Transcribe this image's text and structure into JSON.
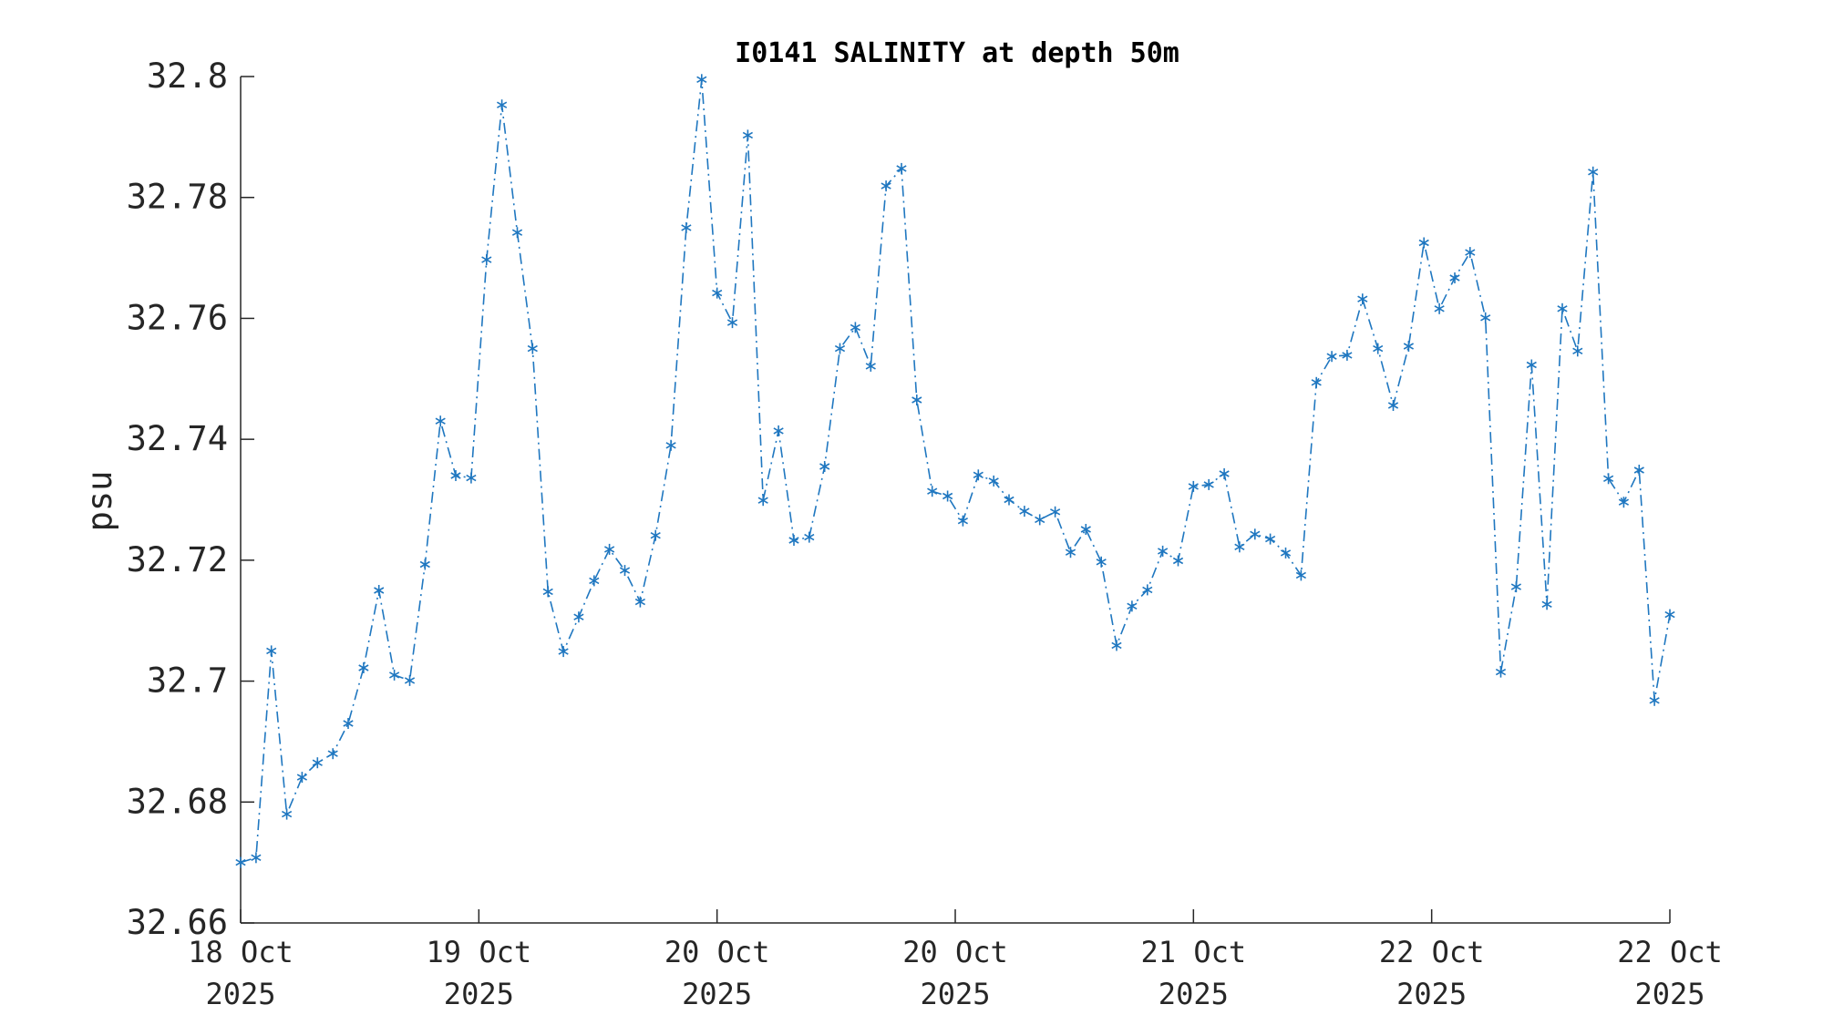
{
  "chart_data": {
    "type": "line",
    "title": "I0141 SALINITY at depth 50m",
    "ylabel": "psu",
    "xlabel": "",
    "ylim": [
      32.66,
      32.8
    ],
    "yticks": [
      "32.66",
      "32.68",
      "32.7",
      "32.72",
      "32.74",
      "32.76",
      "32.78",
      "32.8"
    ],
    "xticks": [
      {
        "day": "18 Oct",
        "year": "2025"
      },
      {
        "day": "19 Oct",
        "year": "2025"
      },
      {
        "day": "20 Oct",
        "year": "2025"
      },
      {
        "day": "20 Oct",
        "year": "2025"
      },
      {
        "day": "21 Oct",
        "year": "2025"
      },
      {
        "day": "22 Oct",
        "year": "2025"
      },
      {
        "day": "22 Oct",
        "year": "2025"
      }
    ],
    "grid": false,
    "line_style": "dash-dot",
    "marker": "asterisk",
    "color": "#1f77c0",
    "series": [
      {
        "values": [
          32.67,
          32.6708,
          32.705,
          32.678,
          32.6841,
          32.6865,
          32.688,
          32.693,
          32.7022,
          32.715,
          32.701,
          32.7001,
          32.7193,
          32.743,
          32.734,
          32.7336,
          32.7697,
          32.7953,
          32.7742,
          32.755,
          32.7148,
          32.7049,
          32.7106,
          32.7166,
          32.7218,
          32.7183,
          32.7131,
          32.7241,
          32.739,
          32.775,
          32.7995,
          32.7642,
          32.7593,
          32.7903,
          32.7299,
          32.7414,
          32.7233,
          32.7238,
          32.7355,
          32.755,
          32.7585,
          32.7521,
          32.7819,
          32.7848,
          32.7465,
          32.7314,
          32.7306,
          32.7265,
          32.7341,
          32.7331,
          32.73,
          32.7281,
          32.7267,
          32.728,
          32.7213,
          32.7251,
          32.7197,
          32.7059,
          32.7124,
          32.7151,
          32.7215,
          32.7199,
          32.7322,
          32.7325,
          32.7343,
          32.7222,
          32.7243,
          32.7235,
          32.7212,
          32.7175,
          32.7494,
          32.7537,
          32.7539,
          32.7632,
          32.755,
          32.7456,
          32.7554,
          32.7725,
          32.7616,
          32.7667,
          32.7709,
          32.7601,
          32.7015,
          32.7156,
          32.7523,
          32.7127,
          32.7616,
          32.7546,
          32.7842,
          32.7335,
          32.7296,
          32.7349,
          32.6968,
          32.711
        ]
      }
    ]
  }
}
